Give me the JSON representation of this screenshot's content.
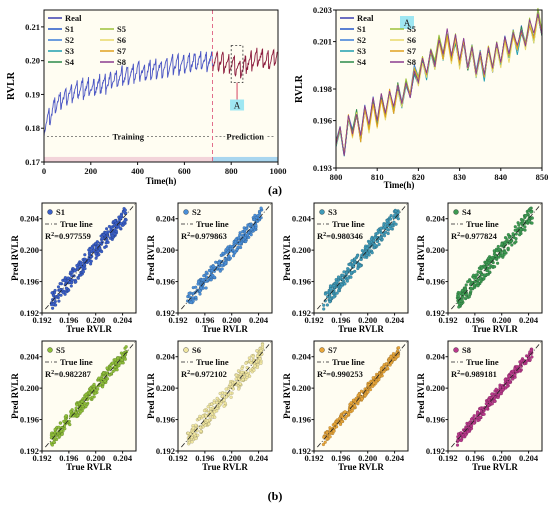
{
  "figure": {
    "panel_a_label": "(a)",
    "panel_b_label": "(b)"
  },
  "chart_data": [
    {
      "id": "a-left",
      "type": "line",
      "xlabel": "Time(h)",
      "ylabel": "RVLR",
      "xlim": [
        0,
        1000
      ],
      "ylim": [
        0.17,
        0.215
      ],
      "xticks": [
        0,
        200,
        400,
        600,
        800,
        1000
      ],
      "yticks": [
        0.17,
        0.18,
        0.19,
        0.2,
        0.21
      ],
      "ytick_labels": [
        "0.17",
        "0.18",
        "0.19",
        "0.20",
        "0.21"
      ],
      "split_x": 720,
      "zoom_box_x": [
        800,
        850
      ],
      "zoom_label": "A",
      "training_label": "Training",
      "prediction_label": "Prediction",
      "legend": [
        "Real",
        "S1",
        "S2",
        "S3",
        "S4",
        "S5",
        "S6",
        "S7",
        "S8"
      ],
      "training_color": "#4a55c4",
      "prediction_color": "#8b1a3c",
      "train_band_color": "#f3d4da",
      "pred_band_color": "#a9d6ef",
      "real_series": {
        "name": "Real",
        "x": [
          0,
          20,
          40,
          60,
          80,
          100,
          130,
          160,
          200,
          240,
          280,
          320,
          360,
          400,
          440,
          480,
          520,
          560,
          600,
          640,
          680,
          720,
          760,
          800,
          840,
          880,
          920,
          960,
          1000
        ],
        "y": [
          0.181,
          0.183,
          0.186,
          0.188,
          0.189,
          0.19,
          0.191,
          0.192,
          0.192,
          0.193,
          0.194,
          0.195,
          0.196,
          0.197,
          0.197,
          0.198,
          0.198,
          0.199,
          0.199,
          0.2,
          0.2,
          0.2,
          0.2,
          0.199,
          0.198,
          0.2,
          0.201,
          0.2,
          0.202
        ]
      }
    },
    {
      "id": "a-right",
      "type": "line",
      "xlabel": "Time(h)",
      "ylabel": "RVLR",
      "xlim": [
        800,
        850
      ],
      "ylim": [
        0.193,
        0.203
      ],
      "xticks": [
        800,
        810,
        820,
        830,
        840,
        850
      ],
      "yticks": [
        0.193,
        0.196,
        0.198,
        0.201,
        0.203
      ],
      "ytick_labels": [
        "0.193",
        "0.196",
        "0.198",
        "0.201",
        "0.203"
      ],
      "zoom_label": "A",
      "legend": [
        "Real",
        "S1",
        "S2",
        "S3",
        "S4",
        "S5",
        "S6",
        "S7",
        "S8"
      ],
      "series": [
        {
          "name": "Real",
          "color": "#3a3fb0"
        },
        {
          "name": "S1",
          "color": "#2457c8"
        },
        {
          "name": "S2",
          "color": "#3b7dd8"
        },
        {
          "name": "S3",
          "color": "#1f9fb0"
        },
        {
          "name": "S4",
          "color": "#2a8a4a"
        },
        {
          "name": "S5",
          "color": "#9cc13a"
        },
        {
          "name": "S6",
          "color": "#e8d96a"
        },
        {
          "name": "S7",
          "color": "#e0a020"
        },
        {
          "name": "S8",
          "color": "#8a3b8f"
        }
      ],
      "real_values": {
        "x": [
          800,
          801,
          802,
          803,
          804,
          805,
          806,
          807,
          808,
          809,
          810,
          811,
          812,
          813,
          814,
          815,
          816,
          817,
          818,
          819,
          820,
          821,
          822,
          823,
          824,
          825,
          826,
          827,
          828,
          829,
          830,
          831,
          832,
          833,
          834,
          835,
          836,
          837,
          838,
          839,
          840,
          841,
          842,
          843,
          844,
          845,
          846,
          847,
          848,
          849,
          850
        ],
        "y": [
          0.1945,
          0.1955,
          0.1938,
          0.1962,
          0.1952,
          0.1965,
          0.1948,
          0.1968,
          0.1955,
          0.1972,
          0.1958,
          0.1975,
          0.1962,
          0.1978,
          0.1966,
          0.1982,
          0.197,
          0.1985,
          0.1975,
          0.1992,
          0.1985,
          0.1998,
          0.1988,
          0.2005,
          0.1995,
          0.2012,
          0.2,
          0.2015,
          0.1998,
          0.2012,
          0.1995,
          0.201,
          0.1992,
          0.2005,
          0.199,
          0.2003,
          0.1988,
          0.2005,
          0.1992,
          0.2008,
          0.1995,
          0.2012,
          0.2,
          0.2015,
          0.2005,
          0.2018,
          0.2008,
          0.2022,
          0.2012,
          0.2028,
          0.2015
        ]
      }
    },
    {
      "id": "b-grid",
      "type": "scatter",
      "xlabel": "True RVLR",
      "ylabel": "Pred RVLR",
      "xlim": [
        0.192,
        0.206
      ],
      "ylim": [
        0.192,
        0.206
      ],
      "xticks": [
        0.192,
        0.196,
        0.2,
        0.204
      ],
      "tick_labels": [
        "0.192",
        "0.196",
        "0.200",
        "0.204"
      ],
      "true_line_label": "True line",
      "r2_prefix": "R",
      "panels": [
        {
          "name": "S1",
          "r2": "=0.977559",
          "color": "#3a5fc8",
          "spread": 0.0011
        },
        {
          "name": "S2",
          "r2": "=0.979863",
          "color": "#4a8fd8",
          "spread": 0.001
        },
        {
          "name": "S3",
          "r2": "=0.980346",
          "color": "#3f9ab8",
          "spread": 0.001
        },
        {
          "name": "S4",
          "r2": "=0.977824",
          "color": "#3d9a52",
          "spread": 0.0011
        },
        {
          "name": "S5",
          "r2": "=0.982287",
          "color": "#8fbf3a",
          "spread": 0.0009
        },
        {
          "name": "S6",
          "r2": "=0.972102",
          "color": "#f0e6a0",
          "spread": 0.0012
        },
        {
          "name": "S7",
          "r2": "=0.990253",
          "color": "#e8a63a",
          "spread": 0.0006
        },
        {
          "name": "S8",
          "r2": "=0.989181",
          "color": "#b8388a",
          "spread": 0.0007
        }
      ]
    }
  ]
}
